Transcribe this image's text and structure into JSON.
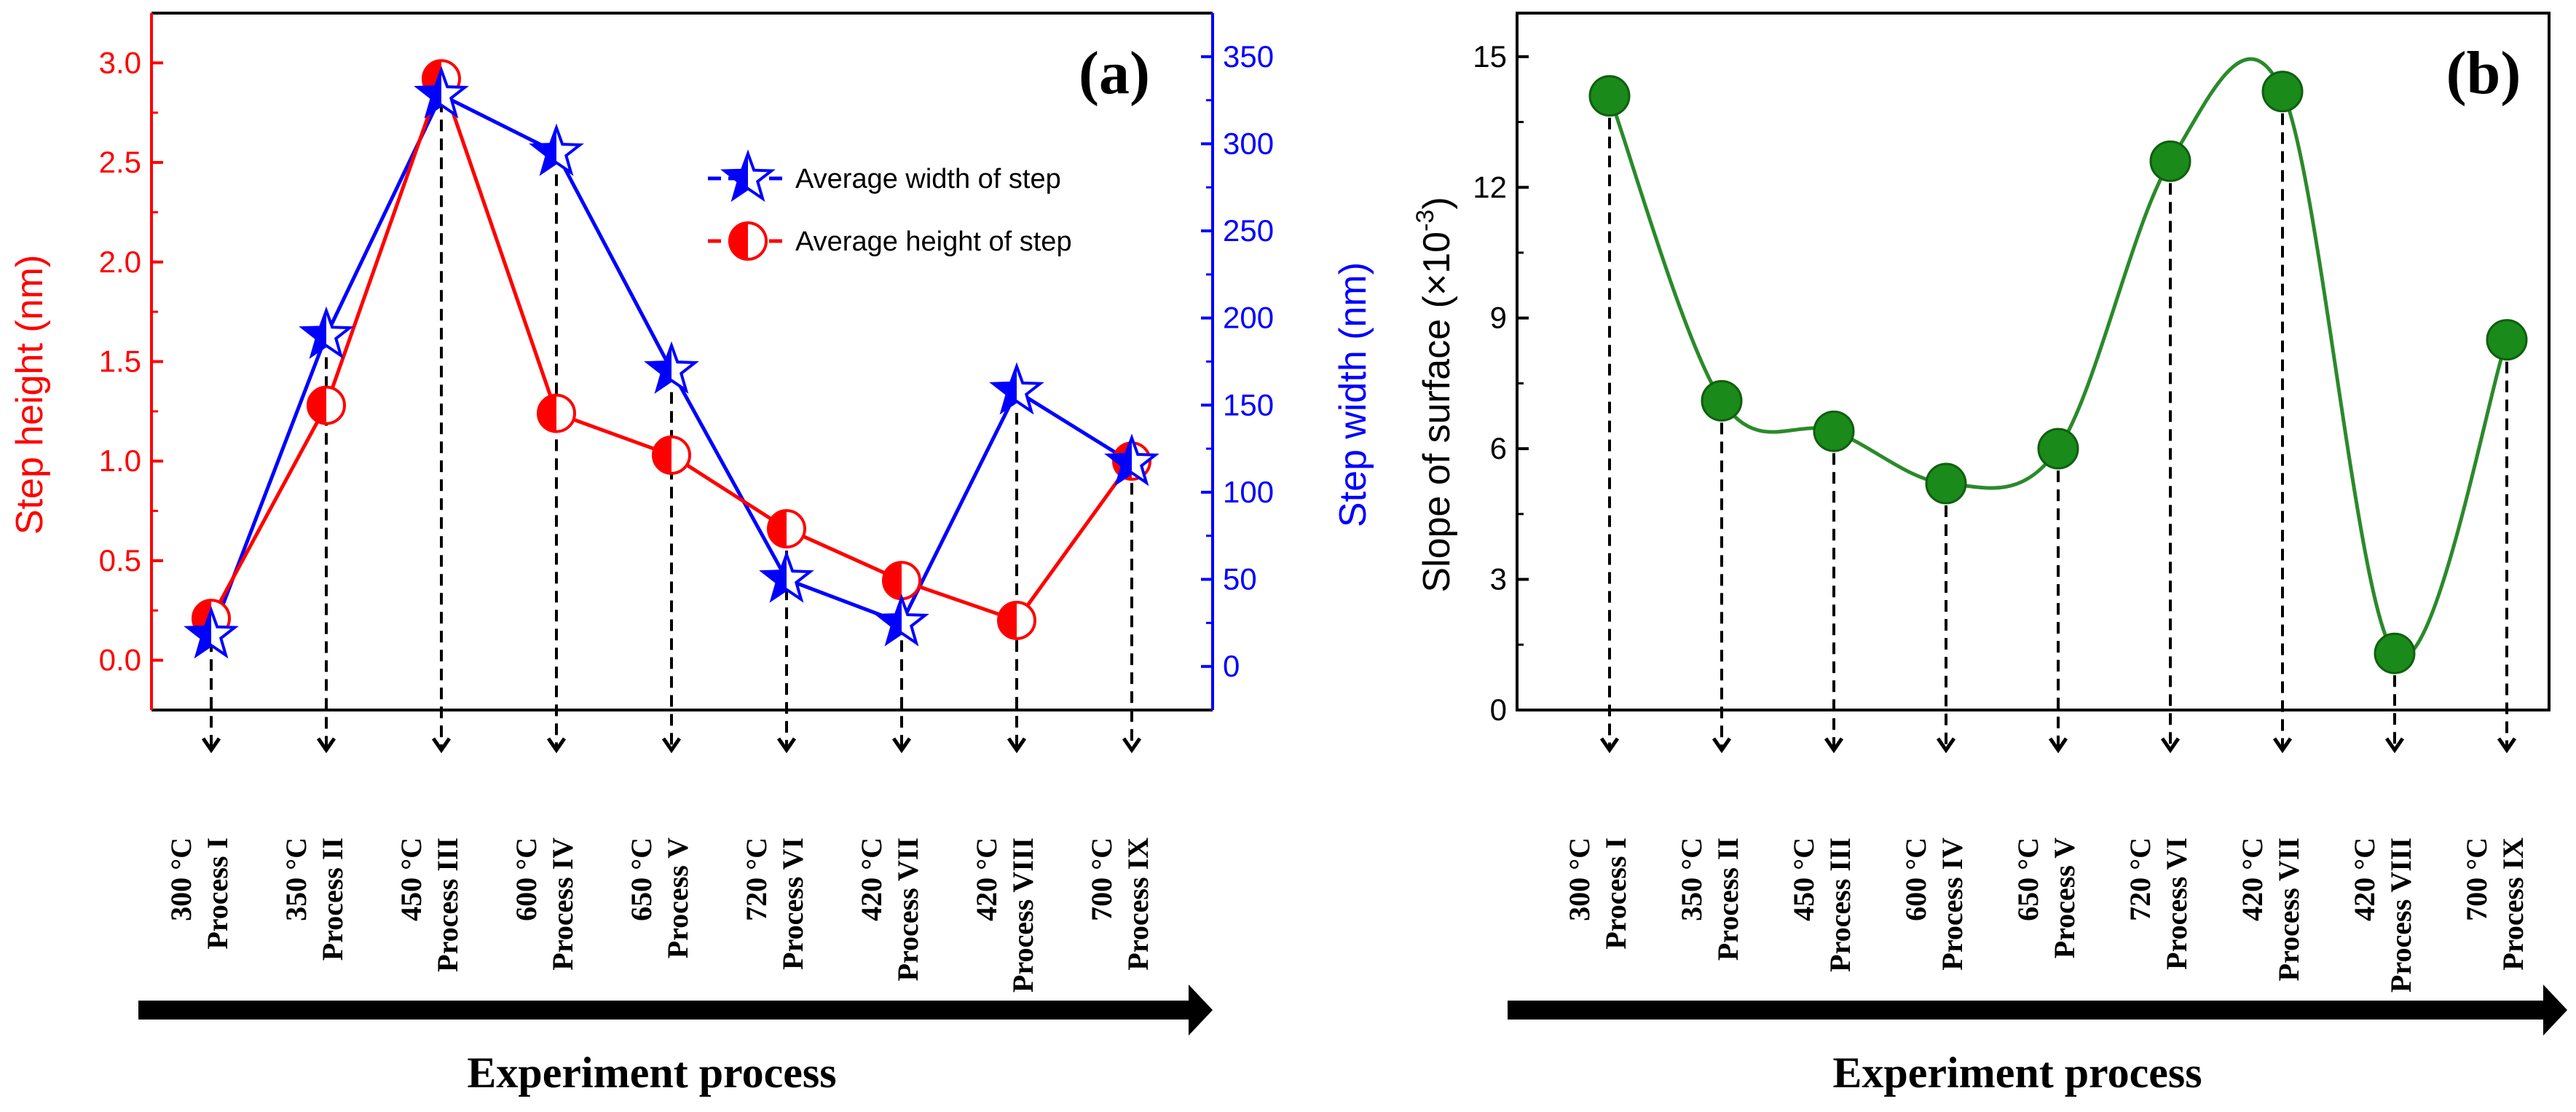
{
  "chart_data": [
    {
      "type": "line",
      "panel_label": "(a)",
      "categories": [
        {
          "temp": "300 °C",
          "process": "Process I"
        },
        {
          "temp": "350 °C",
          "process": "Process II"
        },
        {
          "temp": "450 °C",
          "process": "Process III"
        },
        {
          "temp": "600 °C",
          "process": "Process IV"
        },
        {
          "temp": "650 °C",
          "process": "Process V"
        },
        {
          "temp": "720 °C",
          "process": "Process VI"
        },
        {
          "temp": "420 °C",
          "process": "Process VII"
        },
        {
          "temp": "420 °C",
          "process": "Process VIII"
        },
        {
          "temp": "700 °C",
          "process": "Process IX"
        }
      ],
      "xlabel": "Experiment process",
      "ylabel_left": "Step height (nm)",
      "ylabel_right": "Step width (nm)",
      "ylim_left": [
        -0.25,
        3.25
      ],
      "ylim_right": [
        -25,
        375
      ],
      "yticks_left": [
        0.0,
        0.5,
        1.0,
        1.5,
        2.0,
        2.5,
        3.0
      ],
      "yticks_right": [
        0,
        50,
        100,
        150,
        200,
        250,
        300,
        350
      ],
      "series": [
        {
          "name": "Average width of step",
          "axis": "right",
          "color": "#0000ff",
          "marker": "half-star",
          "values": [
            18,
            190,
            328,
            295,
            170,
            50,
            25,
            158,
            117
          ]
        },
        {
          "name": "Average height of step",
          "axis": "left",
          "color": "#ff0000",
          "marker": "half-circle",
          "values": [
            0.21,
            1.28,
            2.92,
            1.24,
            1.03,
            0.66,
            0.4,
            0.2,
            1.0
          ]
        }
      ],
      "colors": {
        "left_axis": "#ff0000",
        "right_axis": "#0000ff"
      }
    },
    {
      "type": "line",
      "panel_label": "(b)",
      "categories": [
        {
          "temp": "300 °C",
          "process": "Process I"
        },
        {
          "temp": "350 °C",
          "process": "Process II"
        },
        {
          "temp": "450 °C",
          "process": "Process III"
        },
        {
          "temp": "600 °C",
          "process": "Process IV"
        },
        {
          "temp": "650 °C",
          "process": "Process V"
        },
        {
          "temp": "720 °C",
          "process": "Process VI"
        },
        {
          "temp": "420 °C",
          "process": "Process VII"
        },
        {
          "temp": "420 °C",
          "process": "Process VIII"
        },
        {
          "temp": "700 °C",
          "process": "Process IX"
        }
      ],
      "xlabel": "Experiment process",
      "ylabel_main": "Slope of surface (×10",
      "ylabel_sup": "-3",
      "ylabel_close": ")",
      "ylim": [
        0,
        16
      ],
      "yticks": [
        0,
        3,
        6,
        9,
        12,
        15
      ],
      "series": [
        {
          "name": "Slope of surface",
          "color": "#1a8a1a",
          "line_color": "#2a8a2a",
          "marker": "circle",
          "values": [
            14.1,
            7.1,
            6.4,
            5.2,
            6.0,
            12.6,
            14.2,
            1.3,
            8.5
          ]
        }
      ]
    }
  ]
}
